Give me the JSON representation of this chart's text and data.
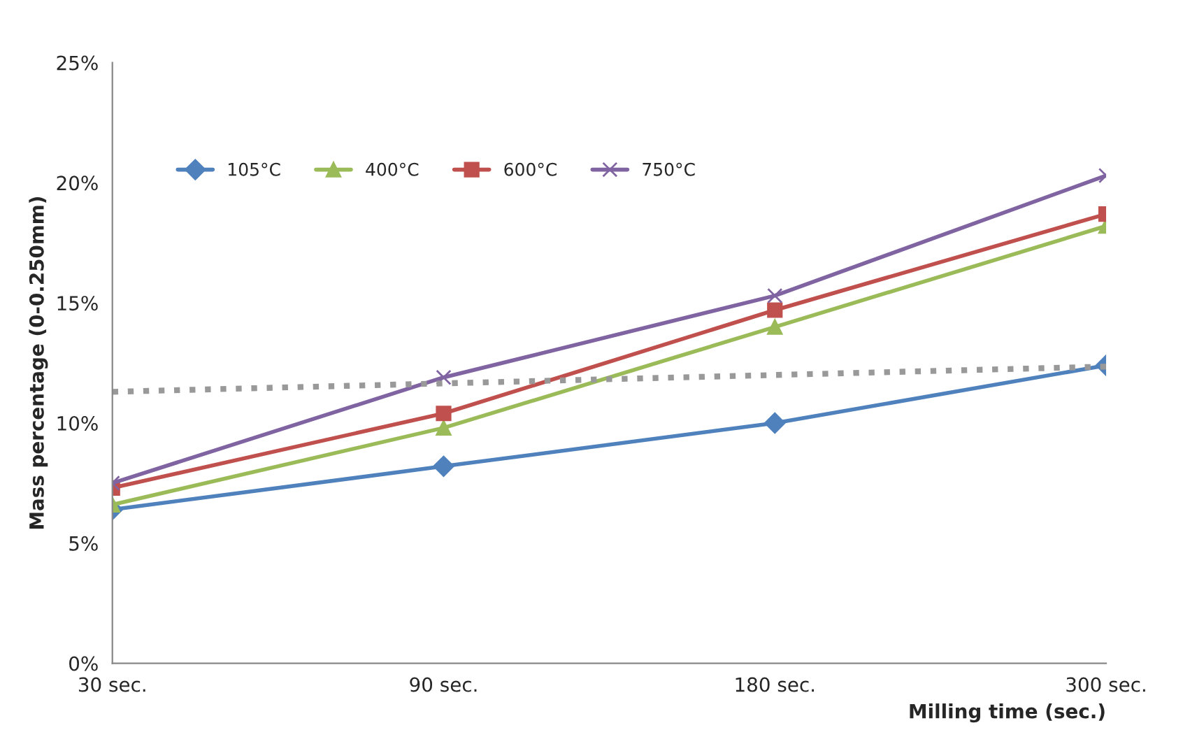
{
  "chart_data": {
    "type": "line",
    "xlabel": "Milling time (sec.)",
    "ylabel": "Mass percentage (0-0.250mm)",
    "categories": [
      "30 sec.",
      "90 sec.",
      "180 sec.",
      "300 sec."
    ],
    "ylim": [
      0,
      25
    ],
    "yticks": [
      {
        "value": 0,
        "label": "0%"
      },
      {
        "value": 5,
        "label": "5%"
      },
      {
        "value": 10,
        "label": "10%"
      },
      {
        "value": 15,
        "label": "15%"
      },
      {
        "value": 20,
        "label": "20%"
      },
      {
        "value": 25,
        "label": "25%"
      }
    ],
    "grid": false,
    "legend": "top left",
    "series": [
      {
        "name": "105°C",
        "color": "#4f81bd",
        "marker": "diamond",
        "values": [
          6.4,
          8.2,
          10.0,
          12.4
        ]
      },
      {
        "name": "400°C",
        "color": "#9bbb59",
        "marker": "triangle",
        "values": [
          6.6,
          9.8,
          14.0,
          18.2
        ]
      },
      {
        "name": "600°C",
        "color": "#c0504d",
        "marker": "square",
        "values": [
          7.3,
          10.4,
          14.7,
          18.7
        ]
      },
      {
        "name": "750°C",
        "color": "#8064a2",
        "marker": "cross",
        "values": [
          7.5,
          11.9,
          15.3,
          20.3
        ]
      },
      {
        "color": "#999999",
        "marker": "none",
        "line_style": "dotted",
        "values": [
          11.3,
          11.65,
          12.0,
          12.35
        ]
      }
    ]
  }
}
